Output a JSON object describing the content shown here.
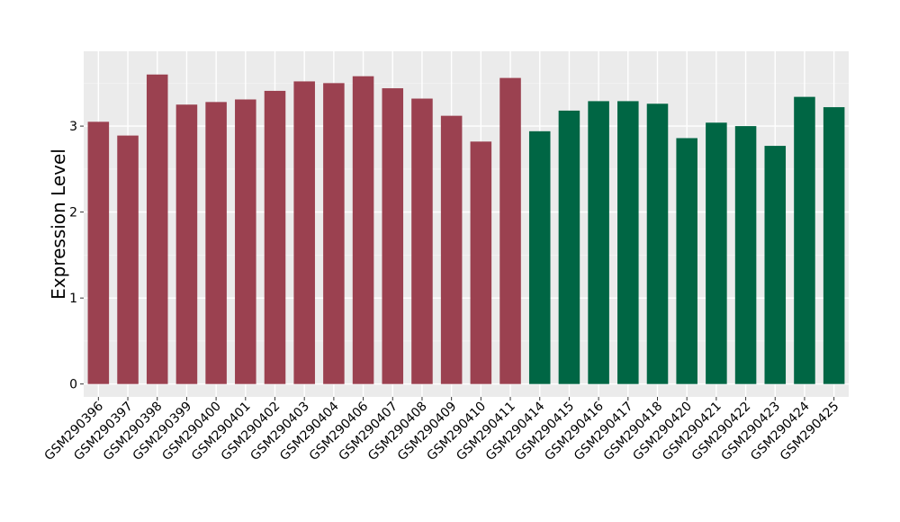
{
  "chart_data": {
    "type": "bar",
    "title": "",
    "xlabel": "",
    "ylabel": "Expression Level",
    "ylim": [
      -0.15,
      3.87
    ],
    "yticks": [
      0,
      1,
      2,
      3
    ],
    "grid": true,
    "legend": "none",
    "categories": [
      "GSM290396",
      "GSM290397",
      "GSM290398",
      "GSM290399",
      "GSM290400",
      "GSM290401",
      "GSM290402",
      "GSM290403",
      "GSM290404",
      "GSM290406",
      "GSM290407",
      "GSM290408",
      "GSM290409",
      "GSM290410",
      "GSM290411",
      "GSM290414",
      "GSM290415",
      "GSM290416",
      "GSM290417",
      "GSM290418",
      "GSM290420",
      "GSM290421",
      "GSM290422",
      "GSM290423",
      "GSM290424",
      "GSM290425"
    ],
    "values": [
      3.05,
      2.89,
      3.6,
      3.25,
      3.28,
      3.31,
      3.41,
      3.52,
      3.5,
      3.58,
      3.44,
      3.32,
      3.12,
      2.82,
      3.56,
      2.94,
      3.18,
      3.29,
      3.29,
      3.26,
      2.86,
      3.04,
      3.0,
      2.77,
      3.34,
      3.22
    ],
    "groups": [
      0,
      0,
      0,
      0,
      0,
      0,
      0,
      0,
      0,
      0,
      0,
      0,
      0,
      0,
      0,
      1,
      1,
      1,
      1,
      1,
      1,
      1,
      1,
      1,
      1,
      1
    ],
    "group_colors": [
      "#9B4150",
      "#006644"
    ],
    "panel_background": "#EBEBEB",
    "grid_major_color": "#FFFFFF",
    "grid_minor_color": "#F5F5F5"
  }
}
